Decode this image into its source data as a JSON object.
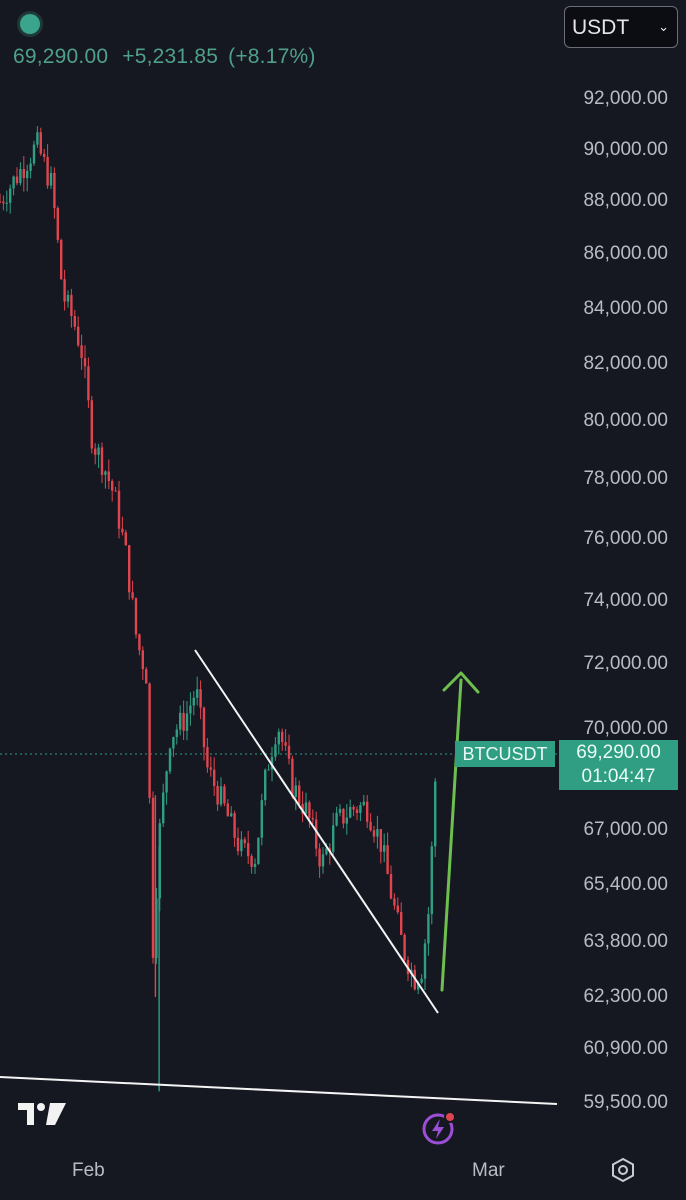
{
  "header": {
    "price": "69,290.00",
    "change": "+5,231.85",
    "change_pct": "(+8.17%)",
    "currency": "USDT"
  },
  "badges": {
    "symbol": "BTCUSDT",
    "last_price": "69,290.00",
    "countdown": "01:04:47"
  },
  "colors": {
    "background": "#161821",
    "up": "#2f9e83",
    "down": "#e0454f",
    "trendline": "#ffffff",
    "arrow": "#6fbf4f"
  },
  "icons": [
    "tradingview-logo-icon",
    "lightning-icon",
    "settings-hexagon-icon",
    "chevron-down-icon"
  ],
  "chart_data": {
    "type": "candlestick",
    "symbol": "BTCUSDT",
    "y_ticks": [
      "92,000.00",
      "90,000.00",
      "88,000.00",
      "86,000.00",
      "84,000.00",
      "82,000.00",
      "80,000.00",
      "78,000.00",
      "76,000.00",
      "74,000.00",
      "72,000.00",
      "70,000.00",
      "67,000.00",
      "65,400.00",
      "63,800.00",
      "62,300.00",
      "60,900.00",
      "59,500.00"
    ],
    "x_ticks": [
      "Feb",
      "Mar"
    ],
    "last_price": 69290.0,
    "ylim": [
      59000,
      93000
    ],
    "scale": "log",
    "grid": false,
    "legend": "none",
    "price_path": [
      [
        0,
        88000
      ],
      [
        0.07,
        89500
      ],
      [
        0.1,
        90200
      ],
      [
        0.14,
        88600
      ],
      [
        0.17,
        84500
      ],
      [
        0.2,
        83500
      ],
      [
        0.22,
        82500
      ],
      [
        0.25,
        79300
      ],
      [
        0.28,
        78500
      ],
      [
        0.31,
        77400
      ],
      [
        0.34,
        75500
      ],
      [
        0.37,
        72700
      ],
      [
        0.4,
        71500
      ],
      [
        0.41,
        63000
      ],
      [
        0.43,
        66800
      ],
      [
        0.46,
        69800
      ],
      [
        0.5,
        70300
      ],
      [
        0.53,
        71200
      ],
      [
        0.56,
        68800
      ],
      [
        0.6,
        67800
      ],
      [
        0.65,
        66400
      ],
      [
        0.69,
        66200
      ],
      [
        0.72,
        68700
      ],
      [
        0.75,
        70200
      ],
      [
        0.79,
        68300
      ],
      [
        0.83,
        67500
      ],
      [
        0.87,
        66000
      ],
      [
        0.91,
        67200
      ],
      [
        0.95,
        67600
      ],
      [
        0.99,
        67700
      ],
      [
        1.03,
        66600
      ],
      [
        1.06,
        65000
      ],
      [
        1.09,
        63600
      ],
      [
        1.12,
        62800
      ],
      [
        1.14,
        63100
      ],
      [
        1.16,
        64800
      ],
      [
        1.18,
        69290
      ]
    ],
    "trendlines": [
      {
        "from": [
          "2026-01-31",
          72000
        ],
        "to": [
          "2026-02-24",
          61700
        ]
      },
      {
        "from": [
          "2026-01-22",
          59800
        ],
        "to": [
          "2026-03-04",
          59100
        ]
      }
    ]
  }
}
